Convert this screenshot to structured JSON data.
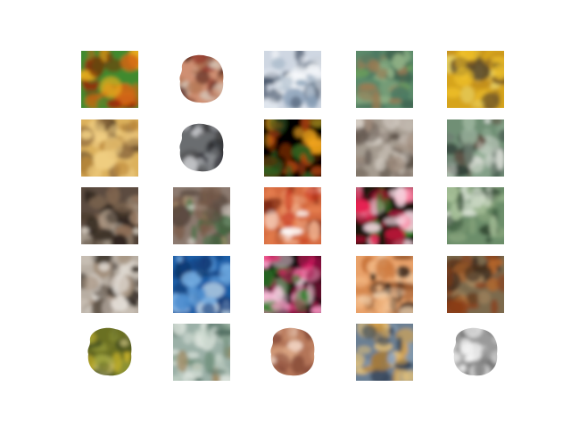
{
  "figure": {
    "rows": 5,
    "cols": 5,
    "samples": [
      {
        "name": "tile-r1-c1",
        "bg": "#3f8a2f",
        "colors": [
          "#a31f06",
          "#7a2b05",
          "#f0b31e",
          "#3f8a2f",
          "#d26513"
        ],
        "shape": "full"
      },
      {
        "name": "tile-r1-c2",
        "bg": "#ffffff",
        "colors": [
          "#8f3026",
          "#cf8f72",
          "#d5c2b2",
          "#5b2a1f",
          "#b27453"
        ],
        "shape": "blob"
      },
      {
        "name": "tile-r1-c3",
        "bg": "#cfd7e2",
        "colors": [
          "#e9eef4",
          "#8aa0b8",
          "#36455a",
          "#aebdcc",
          "#f5f7fa"
        ],
        "shape": "full"
      },
      {
        "name": "tile-r1-c4",
        "bg": "#5c8a6b",
        "colors": [
          "#6b9e5c",
          "#4d7a63",
          "#9a7a52",
          "#3f6551",
          "#8fb085"
        ],
        "shape": "full"
      },
      {
        "name": "tile-r1-c5",
        "bg": "#d6a41f",
        "colors": [
          "#f0c22b",
          "#c4901c",
          "#7d5a22",
          "#e9d66a",
          "#5b4a2a"
        ],
        "shape": "full"
      },
      {
        "name": "tile-r2-c1",
        "bg": "#dcb15c",
        "colors": [
          "#e8c276",
          "#bd8a3b",
          "#5a4126",
          "#f0cf83",
          "#8f6b3e"
        ],
        "shape": "full"
      },
      {
        "name": "tile-r2-c2",
        "bg": "#ffffff",
        "colors": [
          "#2b2a2c",
          "#6b6d70",
          "#c4c5c8",
          "#3a3c42",
          "#8c8f93"
        ],
        "shape": "blob"
      },
      {
        "name": "tile-r2-c3",
        "bg": "#050300",
        "colors": [
          "#f2a51b",
          "#7a2e08",
          "#050300",
          "#c94c0c",
          "#2d5e1f"
        ],
        "shape": "full"
      },
      {
        "name": "tile-r2-c4",
        "bg": "#a59b90",
        "colors": [
          "#c0b7ad",
          "#7b6e63",
          "#d8d1c8",
          "#5d5249",
          "#a28e7e"
        ],
        "shape": "full"
      },
      {
        "name": "tile-r2-c5",
        "bg": "#6f8f75",
        "colors": [
          "#d7dbd4",
          "#6e7f73",
          "#2f3d35",
          "#9ab39c",
          "#5d4b3d"
        ],
        "shape": "full"
      },
      {
        "name": "tile-r3-c1",
        "bg": "#5b4c3f",
        "colors": [
          "#b7a38f",
          "#4b3d30",
          "#d9d0c3",
          "#2f261f",
          "#8e6f57"
        ],
        "shape": "full"
      },
      {
        "name": "tile-r3-c2",
        "bg": "#8c7a70",
        "colors": [
          "#f0eee8",
          "#5b4a3f",
          "#3c6f41",
          "#c3a57a",
          "#7a5d4a"
        ],
        "shape": "full"
      },
      {
        "name": "tile-r3-c3",
        "bg": "#d66b3f",
        "colors": [
          "#f0b08d",
          "#c8361f",
          "#ffffff",
          "#e78251",
          "#7d2a13"
        ],
        "shape": "full"
      },
      {
        "name": "tile-r3-c4",
        "bg": "#1a1210",
        "colors": [
          "#e61f4f",
          "#ff84a4",
          "#2f8a2a",
          "#a20f2c",
          "#f5d5df"
        ],
        "shape": "full"
      },
      {
        "name": "tile-r3-c5",
        "bg": "#6c8e6a",
        "colors": [
          "#a8c29a",
          "#4c6e4d",
          "#dce4d6",
          "#2e4531",
          "#8aa67e"
        ],
        "shape": "full"
      },
      {
        "name": "tile-r4-c1",
        "bg": "#b8aea3",
        "colors": [
          "#e7e2dc",
          "#5f5246",
          "#2d261f",
          "#a18d79",
          "#d0c7bd"
        ],
        "shape": "full"
      },
      {
        "name": "tile-r4-c2",
        "bg": "#1f5fa7",
        "colors": [
          "#0f3769",
          "#4f8fd0",
          "#c6d9ea",
          "#123c7a",
          "#7fb6e8"
        ],
        "shape": "full"
      },
      {
        "name": "tile-r4-c3",
        "bg": "#0b0707",
        "colors": [
          "#e61f6b",
          "#ff9fcb",
          "#2f7f2a",
          "#8b0f3f",
          "#f0d0de"
        ],
        "shape": "full"
      },
      {
        "name": "tile-r4-c4",
        "bg": "#e9a26a",
        "colors": [
          "#f6c08e",
          "#c56f33",
          "#2b1f18",
          "#f0d2b0",
          "#8b4b22"
        ],
        "shape": "full"
      },
      {
        "name": "tile-r4-c5",
        "bg": "#7b6b4d",
        "colors": [
          "#8b3c17",
          "#5f2f12",
          "#b7672b",
          "#3c2c1f",
          "#a6875f"
        ],
        "shape": "full"
      },
      {
        "name": "tile-r5-c1",
        "bg": "#ffffff",
        "colors": [
          "#c7b22a",
          "#6b6f24",
          "#e6d89a",
          "#3f4a1f",
          "#9aa03b"
        ],
        "shape": "blob"
      },
      {
        "name": "tile-r5-c2",
        "bg": "#9bb0a7",
        "colors": [
          "#c2d1c6",
          "#6d8d79",
          "#a08a63",
          "#4f6d61",
          "#dfe6df"
        ],
        "shape": "full"
      },
      {
        "name": "tile-r5-c3",
        "bg": "#ffffff",
        "colors": [
          "#d7a27f",
          "#b47458",
          "#efd1bf",
          "#8b4f3c",
          "#c58b6a"
        ],
        "shape": "blob"
      },
      {
        "name": "tile-r5-c4",
        "bg": "#6b7f93",
        "colors": [
          "#d9a24a",
          "#2f3f52",
          "#a37a3c",
          "#8ea6bd",
          "#e2c07a"
        ],
        "shape": "full"
      },
      {
        "name": "tile-r5-c5",
        "bg": "#ffffff",
        "colors": [
          "#e9e9e9",
          "#9a9a9a",
          "#c8c8c8",
          "#6e6e6e",
          "#f7f7f7"
        ],
        "shape": "blob"
      }
    ]
  }
}
